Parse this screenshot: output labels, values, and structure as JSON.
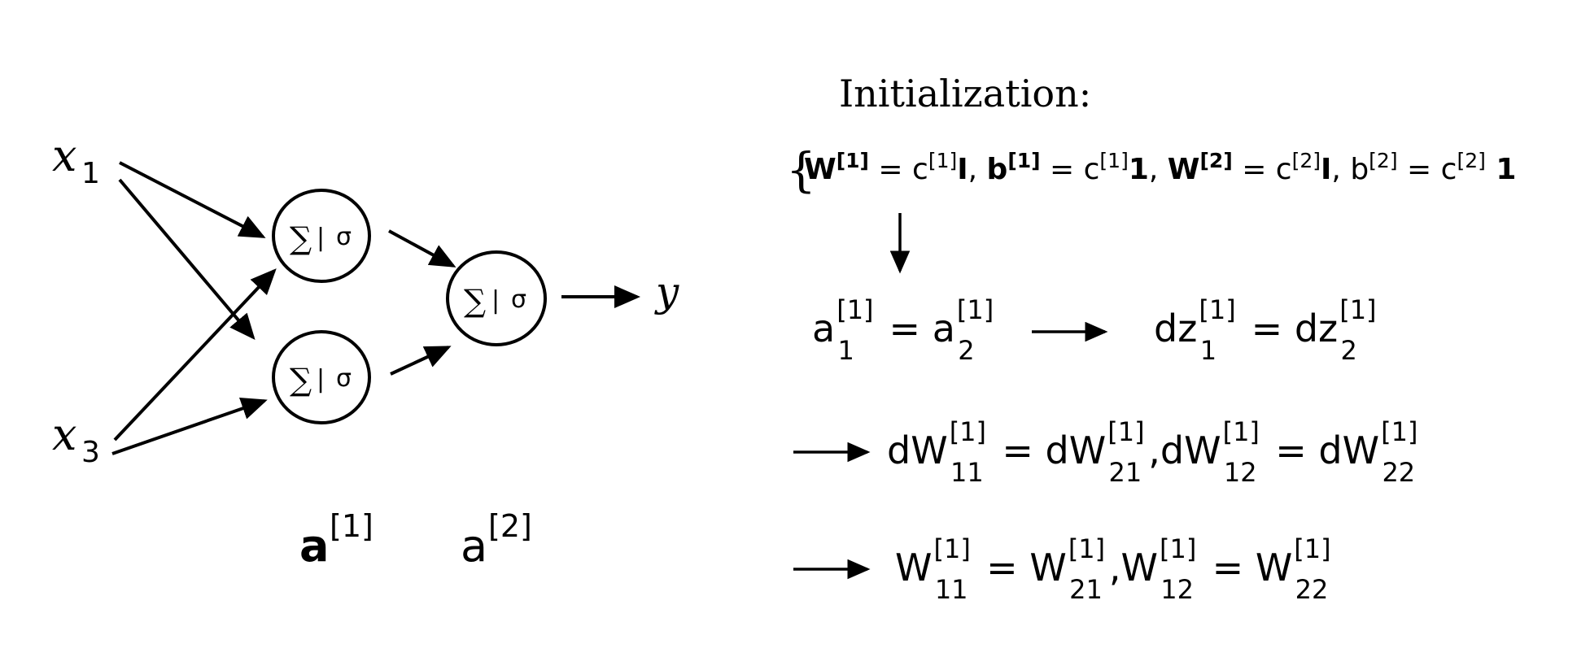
{
  "diagram": {
    "inputs": {
      "x1": {
        "base": "x",
        "sub": "1"
      },
      "x3": {
        "base": "x",
        "sub": "3"
      }
    },
    "neuron_label": {
      "sum": "∑",
      "bar": "|",
      "sigma": "σ"
    },
    "output_label": "y",
    "layer_labels": {
      "a1": {
        "base": "a",
        "sup": "[1]"
      },
      "a2": {
        "base": "a",
        "sup": "[2]"
      }
    }
  },
  "equations": {
    "heading": "Initialization:",
    "brace": "{",
    "init": {
      "W1": "W",
      "W1_sup": "[1]",
      "eq1": " = c",
      "c1_sup": "[1]",
      "I1": "I",
      "comma1": ", ",
      "b1": "b",
      "b1_sup": "[1]",
      "eq2": " = c",
      "c2_sup": "[1]",
      "one1": "1",
      "comma2": ", ",
      "W2": "W",
      "W2_sup": "[2]",
      "eq3": " = c",
      "c3_sup": "[2]",
      "I2": "I",
      "comma3": ", ",
      "b2": "b",
      "b2_sup": "[2]",
      "eq4": " = c",
      "c4_sup": "[2]",
      "one2": " 1"
    },
    "row_a": {
      "left_base": "a",
      "left_sup": "[1]",
      "left_sub": "1",
      "eq": " = ",
      "right_base": "a",
      "right_sup": "[1]",
      "right_sub": "2"
    },
    "row_dz": {
      "left_base": "dz",
      "left_sup": "[1]",
      "left_sub": "1",
      "eq": " = ",
      "right_base": "dz",
      "right_sup": "[1]",
      "right_sub": "2"
    },
    "row_dW": {
      "t1_base": "dW",
      "t1_sup": "[1]",
      "t1_sub": "11",
      "eq1": " = ",
      "t2_base": "dW",
      "t2_sup": "[1]",
      "t2_sub": "21",
      "comma": ",",
      "t3_base": "dW",
      "t3_sup": "[1]",
      "t3_sub": "12",
      "eq2": " = ",
      "t4_base": "dW",
      "t4_sup": "[1]",
      "t4_sub": "22"
    },
    "row_W": {
      "t1_base": "W",
      "t1_sup": "[1]",
      "t1_sub": "11",
      "eq1": " = ",
      "t2_base": "W",
      "t2_sup": "[1]",
      "t2_sub": "21",
      "comma": ",",
      "t3_base": "W",
      "t3_sup": "[1]",
      "t3_sub": "12",
      "eq2": " = ",
      "t4_base": "W",
      "t4_sup": "[1]",
      "t4_sub": "22"
    }
  }
}
